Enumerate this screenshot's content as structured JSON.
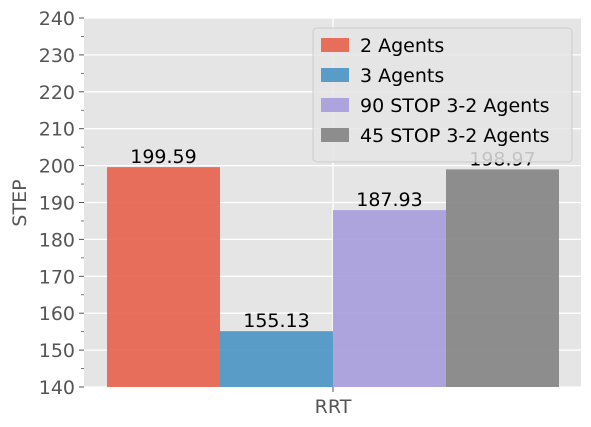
{
  "chart_data": {
    "type": "bar",
    "title": "",
    "xlabel": "",
    "ylabel": "STEP",
    "categories": [
      "RRT"
    ],
    "ylim": [
      140,
      240
    ],
    "yticks": [
      140,
      150,
      160,
      170,
      180,
      190,
      200,
      210,
      220,
      230,
      240
    ],
    "grid": true,
    "legend_position": "top-right",
    "series": [
      {
        "name": "2 Agents",
        "values": [
          199.59
        ],
        "label": "199.59",
        "color": "#E5604B"
      },
      {
        "name": "3 Agents",
        "values": [
          155.13
        ],
        "label": "155.13",
        "color": "#4A93C4"
      },
      {
        "name": "90 STOP 3-2 Agents",
        "values": [
          187.93
        ],
        "label": "187.93",
        "color": "#A69BDB"
      },
      {
        "name": "45 STOP 3-2 Agents",
        "values": [
          198.97
        ],
        "label": "198.97",
        "color": "#838383"
      }
    ]
  }
}
